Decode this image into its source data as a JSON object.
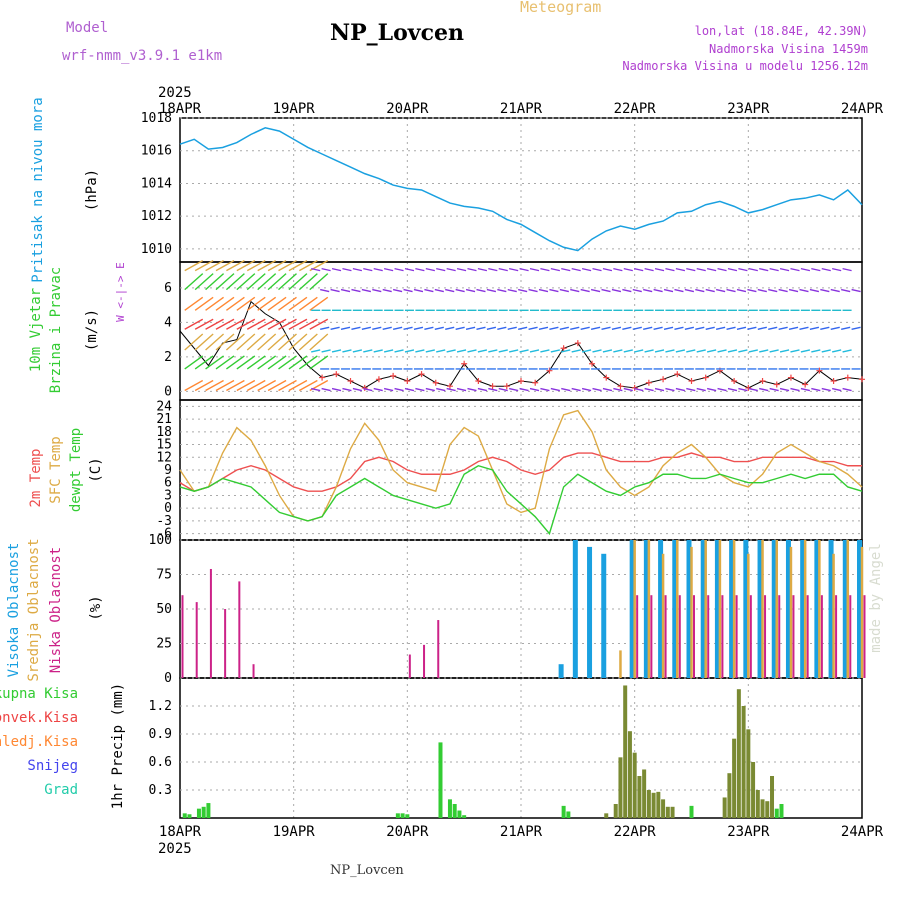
{
  "header": {
    "title": "NP_Lovcen",
    "subtitle": "Meteogram",
    "model_label": "Model",
    "model_name": "wrf-nmm_v3.9.1 e1km",
    "location": "lon,lat (18.84E, 42.39N)",
    "altitude": "Nadmorska Visina 1459m",
    "model_altitude": "Nadmorska Visina u modelu 1256.12m"
  },
  "footer": {
    "station": "NP_Lovcen",
    "year_top": "2025",
    "year_bottom": "2025"
  },
  "watermark": "made by Angel",
  "colors": {
    "pressure": "#1aa0e0",
    "total_precip": "#33cc33",
    "conv_precip": "#ee4444",
    "frozen_precip": "#ff8833",
    "snow": "#4444ee",
    "graupel": "#22ccaa",
    "temp2m": "#ee5050",
    "sfc_temp": "#ddaa44",
    "dewpoint": "#33cc33",
    "high_cloud": "#1aa0e0",
    "mid_cloud": "#ddaa44",
    "low_cloud": "#cc2288"
  },
  "chart_data": [
    {
      "type": "line",
      "panel": "pressure",
      "ylabel": "Pritisak na nivou mora",
      "unit": "(hPa)",
      "x_ticks": [
        "18APR",
        "19APR",
        "20APR",
        "21APR",
        "22APR",
        "23APR",
        "24APR"
      ],
      "y_ticks": [
        "1010",
        "1012",
        "1014",
        "1016",
        "1018"
      ],
      "ylim": [
        1009.2,
        1018
      ],
      "x_hours": [
        0,
        3,
        6,
        9,
        12,
        15,
        18,
        21,
        24,
        27,
        30,
        33,
        36,
        39,
        42,
        45,
        48,
        51,
        54,
        57,
        60,
        63,
        66,
        69,
        72,
        75,
        78,
        81,
        84,
        87,
        90,
        93,
        96,
        99,
        102,
        105,
        108,
        111,
        114,
        117,
        120,
        123,
        126,
        129,
        132,
        135,
        138,
        141,
        144
      ],
      "values": [
        1016.4,
        1016.7,
        1016.1,
        1016.2,
        1016.5,
        1017.0,
        1017.4,
        1017.2,
        1016.7,
        1016.2,
        1015.8,
        1015.4,
        1015.0,
        1014.6,
        1014.3,
        1013.9,
        1013.7,
        1013.6,
        1013.2,
        1012.8,
        1012.6,
        1012.5,
        1012.3,
        1011.8,
        1011.5,
        1011.0,
        1010.5,
        1010.1,
        1009.9,
        1010.6,
        1011.1,
        1011.4,
        1011.2,
        1011.5,
        1011.7,
        1012.2,
        1012.3,
        1012.7,
        1012.9,
        1012.6,
        1012.2,
        1012.4,
        1012.7,
        1013.0,
        1013.1,
        1013.3,
        1013.0,
        1013.6,
        1012.7
      ]
    },
    {
      "type": "line",
      "panel": "wind",
      "ylabel": "10m Vjetar Brzina i Pravac",
      "unit": "(m/s)",
      "compass": "W <-|-> E",
      "y_ticks": [
        "0",
        "2",
        "4",
        "6"
      ],
      "ylim": [
        -0.5,
        7.5
      ],
      "x_hours": [
        0,
        3,
        6,
        9,
        12,
        15,
        18,
        21,
        24,
        27,
        30,
        33,
        36,
        39,
        42,
        45,
        48,
        51,
        54,
        57,
        60,
        63,
        66,
        69,
        72,
        75,
        78,
        81,
        84,
        87,
        90,
        93,
        96,
        99,
        102,
        105,
        108,
        111,
        114,
        117,
        120,
        123,
        126,
        129,
        132,
        135,
        138,
        141,
        144
      ],
      "values": [
        3.5,
        2.5,
        1.5,
        2.8,
        3.0,
        5.2,
        4.5,
        4.0,
        2.5,
        1.5,
        0.8,
        1.0,
        0.6,
        0.2,
        0.7,
        0.9,
        0.6,
        1.0,
        0.5,
        0.3,
        1.6,
        0.6,
        0.3,
        0.3,
        0.6,
        0.5,
        1.2,
        2.5,
        2.8,
        1.6,
        0.8,
        0.3,
        0.2,
        0.5,
        0.7,
        1.0,
        0.6,
        0.8,
        1.2,
        0.6,
        0.2,
        0.6,
        0.4,
        0.8,
        0.4,
        1.2,
        0.6,
        0.8,
        0.7
      ]
    },
    {
      "type": "line",
      "panel": "temperature",
      "unit": "(C)",
      "y_ticks": [
        "-6",
        "-3",
        "0",
        "3",
        "6",
        "9",
        "12",
        "15",
        "18",
        "21",
        "24"
      ],
      "ylim": [
        -7.5,
        25.5
      ],
      "x_hours": [
        0,
        3,
        6,
        9,
        12,
        15,
        18,
        21,
        24,
        27,
        30,
        33,
        36,
        39,
        42,
        45,
        48,
        51,
        54,
        57,
        60,
        63,
        66,
        69,
        72,
        75,
        78,
        81,
        84,
        87,
        90,
        93,
        96,
        99,
        102,
        105,
        108,
        111,
        114,
        117,
        120,
        123,
        126,
        129,
        132,
        135,
        138,
        141,
        144
      ],
      "series": [
        {
          "name": "2m Temp",
          "values": [
            6,
            4,
            5,
            7,
            9,
            10,
            9,
            7,
            5,
            4,
            4,
            5,
            7,
            11,
            12,
            11,
            9,
            8,
            8,
            8,
            9,
            11,
            12,
            11,
            9,
            8,
            9,
            12,
            13,
            13,
            12,
            11,
            11,
            11,
            12,
            12,
            13,
            12,
            12,
            11,
            11,
            12,
            12,
            12,
            12,
            11,
            11,
            10,
            10
          ]
        },
        {
          "name": "SFC Temp",
          "values": [
            9,
            4,
            5,
            13,
            19,
            16,
            10,
            3,
            -2,
            -3,
            -2,
            5,
            14,
            20,
            16,
            9,
            6,
            5,
            4,
            15,
            19,
            17,
            9,
            1,
            -1,
            0,
            14,
            22,
            23,
            18,
            9,
            5,
            3,
            5,
            10,
            13,
            15,
            12,
            8,
            6,
            5,
            8,
            13,
            15,
            13,
            11,
            10,
            8,
            5
          ]
        },
        {
          "name": "dewpt Temp",
          "values": [
            5,
            4,
            5,
            7,
            6,
            5,
            2,
            -1,
            -2,
            -3,
            -2,
            3,
            5,
            7,
            5,
            3,
            2,
            1,
            0,
            1,
            8,
            10,
            9,
            4,
            1,
            -2,
            -6,
            5,
            8,
            6,
            4,
            3,
            5,
            6,
            8,
            8,
            7,
            7,
            8,
            7,
            6,
            6,
            7,
            8,
            7,
            8,
            8,
            5,
            4
          ]
        }
      ]
    },
    {
      "type": "bar",
      "panel": "clouds",
      "unit": "(%)",
      "y_ticks": [
        "0",
        "25",
        "50",
        "75",
        "100"
      ],
      "ylim": [
        0,
        100
      ],
      "x_hours": [
        0,
        3,
        6,
        9,
        12,
        15,
        18,
        21,
        24,
        27,
        30,
        33,
        36,
        39,
        42,
        45,
        48,
        51,
        54,
        57,
        60,
        63,
        66,
        69,
        72,
        75,
        78,
        81,
        84,
        87,
        90,
        93,
        96,
        99,
        102,
        105,
        108,
        111,
        114,
        117,
        120,
        123,
        126,
        129,
        132,
        135,
        138,
        141,
        144
      ],
      "series": [
        {
          "name": "Visoka Oblacnost",
          "values": [
            0,
            0,
            0,
            0,
            0,
            0,
            0,
            0,
            0,
            0,
            0,
            0,
            0,
            0,
            0,
            0,
            0,
            0,
            0,
            0,
            0,
            0,
            0,
            0,
            0,
            0,
            0,
            10,
            100,
            95,
            90,
            0,
            100,
            100,
            100,
            100,
            100,
            100,
            100,
            100,
            100,
            100,
            100,
            100,
            100,
            100,
            100,
            100,
            100
          ]
        },
        {
          "name": "Srednja Oblacnost",
          "values": [
            0,
            0,
            0,
            0,
            0,
            0,
            0,
            0,
            0,
            0,
            0,
            0,
            0,
            0,
            0,
            0,
            0,
            0,
            0,
            0,
            0,
            0,
            0,
            0,
            0,
            0,
            0,
            0,
            0,
            0,
            0,
            20,
            100,
            100,
            90,
            100,
            95,
            100,
            100,
            100,
            90,
            100,
            100,
            95,
            100,
            100,
            90,
            100,
            95
          ]
        },
        {
          "name": "Niska Oblacnost",
          "values": [
            60,
            55,
            79,
            50,
            70,
            10,
            0,
            0,
            0,
            0,
            0,
            0,
            0,
            0,
            0,
            0,
            17,
            24,
            42,
            0,
            0,
            0,
            0,
            0,
            0,
            0,
            0,
            0,
            0,
            0,
            0,
            0,
            60,
            60,
            60,
            60,
            60,
            60,
            60,
            60,
            60,
            60,
            60,
            60,
            60,
            60,
            60,
            60,
            60
          ]
        }
      ]
    },
    {
      "type": "bar",
      "panel": "precipitation",
      "unit": "1hr Precip (mm)",
      "y_ticks": [
        "0.3",
        "0.6",
        "0.9",
        "1.2"
      ],
      "ylim": [
        0,
        1.5
      ],
      "legend": [
        "Ukupna Kisa",
        "Konvek.Kisa",
        "Zaledj.Kisa",
        "Snijeg",
        "Grad"
      ],
      "x_hours": [
        1,
        2,
        4,
        5,
        6,
        46,
        47,
        48,
        55,
        57,
        58,
        59,
        60,
        81,
        82,
        90,
        92,
        93,
        94,
        95,
        96,
        97,
        98,
        99,
        100,
        101,
        102,
        103,
        104,
        108,
        115,
        116,
        117,
        118,
        119,
        120,
        121,
        122,
        123,
        124,
        125,
        126,
        127
      ],
      "values": [
        0.05,
        0.04,
        0.1,
        0.12,
        0.16,
        0.05,
        0.05,
        0.04,
        0.81,
        0.2,
        0.15,
        0.08,
        0.03,
        0.13,
        0.07,
        0.05,
        0.15,
        0.65,
        1.42,
        0.93,
        0.7,
        0.45,
        0.52,
        0.3,
        0.27,
        0.28,
        0.2,
        0.12,
        0.12,
        0.13,
        0.22,
        0.48,
        0.85,
        1.38,
        1.2,
        0.95,
        0.6,
        0.3,
        0.2,
        0.18,
        0.45,
        0.1,
        0.15
      ]
    }
  ],
  "labels": {
    "x_ticks": [
      "18APR",
      "19APR",
      "20APR",
      "21APR",
      "22APR",
      "23APR",
      "24APR"
    ],
    "temp_series": [
      "2m Temp",
      "SFC Temp",
      "dewpt Temp"
    ],
    "cloud_series": [
      "Visoka Oblacnost",
      "Srednja Oblacnost",
      "Niska Oblacnost"
    ]
  }
}
